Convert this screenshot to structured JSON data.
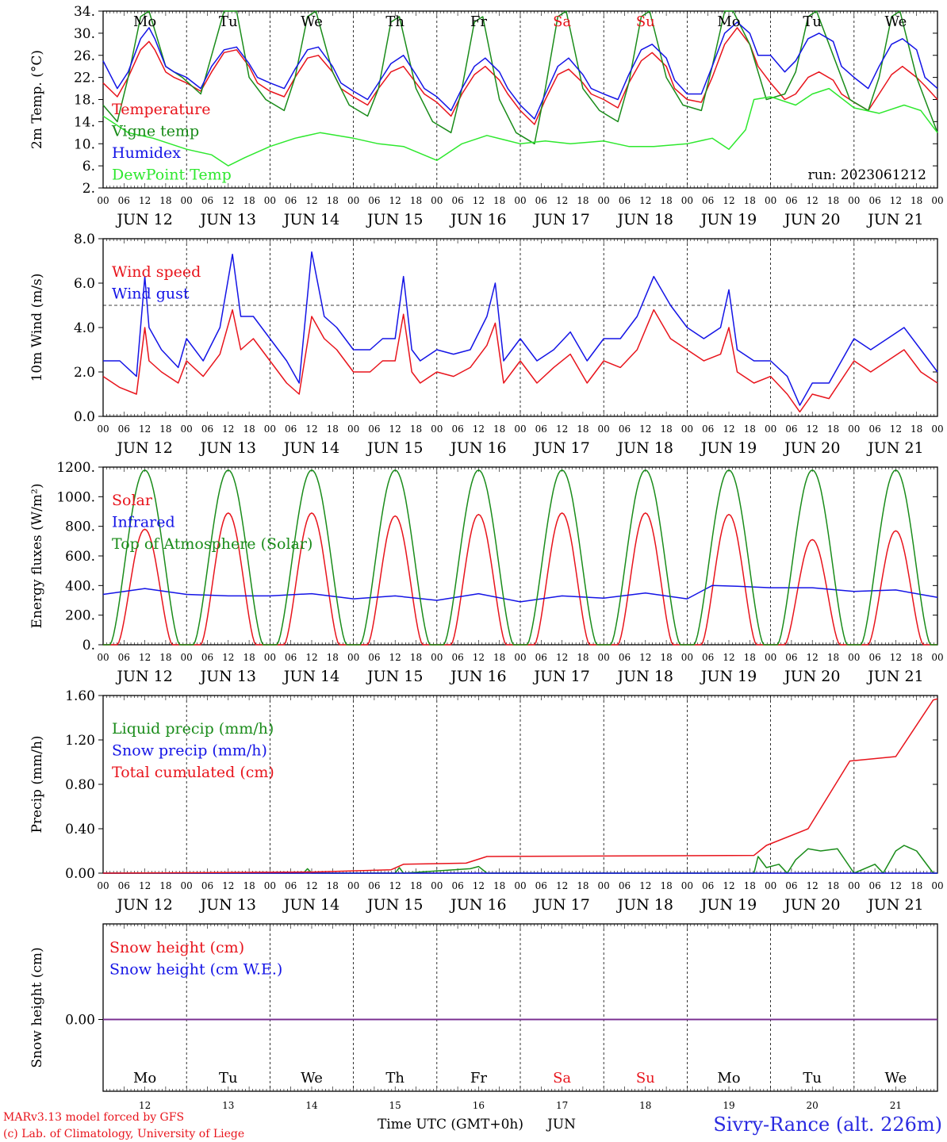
{
  "meta": {
    "run": "run: 2023061212",
    "credits": [
      "MARv3.13 model forced by GFS",
      "(c) Lab. of Climatology, University of Liege"
    ],
    "station": "Sivry-Rance (alt. 226m)",
    "xlabel": "Time UTC (GMT+0h)",
    "month": "JUN"
  },
  "days": {
    "names": [
      "Mo",
      "Tu",
      "We",
      "Th",
      "Fr",
      "Sa",
      "Su",
      "Mo",
      "Tu",
      "We"
    ],
    "weekend": [
      false,
      false,
      false,
      false,
      false,
      true,
      true,
      false,
      false,
      false
    ],
    "dates": [
      "JUN 12",
      "JUN 13",
      "JUN 14",
      "JUN 15",
      "JUN 16",
      "JUN 17",
      "JUN 18",
      "JUN 19",
      "JUN 20",
      "JUN 21"
    ],
    "numbers": [
      "12",
      "13",
      "14",
      "15",
      "16",
      "17",
      "18",
      "19",
      "20",
      "21"
    ],
    "hour_ticks": [
      "00",
      "06",
      "12",
      "18"
    ],
    "final_tick": "00"
  },
  "colors": {
    "red": "#e8141c",
    "blue": "#1414e6",
    "green": "#1a8c1a",
    "lightgreen": "#2ee82e",
    "purple": "#7a2a8a",
    "weekend": "#e8141c",
    "axis": "#000000"
  },
  "chart_data": [
    {
      "type": "line",
      "ylabel": "2m Temp. (°C)",
      "ylim": [
        2,
        34
      ],
      "yticks": [
        "34.",
        "30.",
        "26.",
        "22.",
        "18.",
        "14.",
        "10.",
        "6.",
        "2."
      ],
      "x_unit": "days since 2023-06-12 00 UTC",
      "xlim": [
        0,
        10
      ],
      "legend": "top-left",
      "series": [
        {
          "name": "Temperature",
          "color": "red",
          "x": [
            0,
            0.17,
            0.3,
            0.45,
            0.55,
            0.62,
            0.75,
            0.85,
            1.0,
            1.17,
            1.3,
            1.45,
            1.6,
            1.75,
            1.85,
            2.0,
            2.17,
            2.3,
            2.45,
            2.58,
            2.75,
            2.85,
            3.0,
            3.17,
            3.3,
            3.45,
            3.6,
            3.75,
            3.85,
            4.0,
            4.17,
            4.3,
            4.45,
            4.58,
            4.75,
            4.85,
            5.0,
            5.17,
            5.3,
            5.45,
            5.58,
            5.75,
            5.85,
            6.0,
            6.17,
            6.3,
            6.45,
            6.58,
            6.75,
            6.85,
            7.0,
            7.17,
            7.3,
            7.45,
            7.6,
            7.75,
            7.85,
            8.0,
            8.17,
            8.3,
            8.45,
            8.58,
            8.75,
            8.85,
            9.0,
            9.17,
            9.3,
            9.45,
            9.58,
            9.75,
            9.85,
            10.0
          ],
          "y": [
            21,
            18.5,
            22,
            27,
            28.5,
            27,
            23,
            22,
            21,
            19.5,
            23,
            26.5,
            27,
            24,
            21,
            19.5,
            18.5,
            22,
            25.5,
            26,
            23,
            20,
            18.5,
            17,
            20,
            23,
            24,
            21,
            19,
            17.5,
            15,
            19,
            22.5,
            24,
            21.5,
            19,
            16,
            13.5,
            18,
            22.5,
            23.5,
            21,
            19,
            18,
            16.5,
            21,
            25,
            26.5,
            24,
            20,
            18,
            17.5,
            22,
            28,
            31,
            28,
            24,
            21,
            18,
            19,
            22,
            23,
            21.5,
            19,
            17.5,
            16,
            19,
            22.5,
            24,
            22,
            20.5,
            18
          ]
        },
        {
          "name": "Vigne temp",
          "color": "green",
          "x": [
            0,
            0.17,
            0.3,
            0.45,
            0.55,
            0.75,
            0.95,
            1.17,
            1.3,
            1.45,
            1.6,
            1.75,
            1.95,
            2.17,
            2.3,
            2.45,
            2.55,
            2.75,
            2.95,
            3.17,
            3.3,
            3.45,
            3.55,
            3.75,
            3.95,
            4.17,
            4.3,
            4.45,
            4.55,
            4.75,
            4.95,
            5.17,
            5.3,
            5.45,
            5.55,
            5.75,
            5.95,
            6.17,
            6.3,
            6.45,
            6.55,
            6.75,
            6.95,
            7.17,
            7.3,
            7.45,
            7.55,
            7.75,
            7.95,
            8.17,
            8.3,
            8.45,
            8.55,
            8.75,
            8.95,
            9.17,
            9.3,
            9.45,
            9.55,
            9.75,
            9.95,
            10.0
          ],
          "y": [
            17,
            14,
            22,
            33,
            34,
            24,
            22,
            19,
            26,
            34,
            34,
            22,
            18,
            16,
            22,
            33,
            34,
            23,
            17,
            15,
            20,
            32,
            33,
            20,
            14,
            12,
            20,
            32,
            33,
            18,
            12,
            10,
            20,
            33,
            34,
            20,
            16,
            14,
            21,
            33,
            34,
            22,
            17,
            16,
            24,
            34,
            34,
            28,
            18,
            19,
            23,
            33,
            34,
            26,
            18,
            16,
            22,
            33,
            34,
            22,
            14,
            12
          ]
        },
        {
          "name": "Humidex",
          "color": "blue",
          "x": [
            0,
            0.17,
            0.3,
            0.45,
            0.55,
            0.62,
            0.75,
            0.85,
            1.0,
            1.17,
            1.3,
            1.45,
            1.6,
            1.75,
            1.85,
            2.0,
            2.17,
            2.3,
            2.45,
            2.58,
            2.75,
            2.85,
            3.0,
            3.17,
            3.3,
            3.45,
            3.6,
            3.75,
            3.85,
            4.0,
            4.17,
            4.3,
            4.45,
            4.58,
            4.75,
            4.85,
            5.0,
            5.17,
            5.3,
            5.45,
            5.58,
            5.75,
            5.85,
            6.0,
            6.17,
            6.3,
            6.45,
            6.58,
            6.75,
            6.85,
            7.0,
            7.17,
            7.3,
            7.45,
            7.6,
            7.75,
            7.85,
            8.0,
            8.17,
            8.3,
            8.45,
            8.58,
            8.75,
            8.85,
            9.0,
            9.17,
            9.3,
            9.45,
            9.58,
            9.75,
            9.85,
            10.0
          ],
          "y": [
            25,
            20,
            23,
            29,
            31,
            29,
            24,
            23,
            22,
            20,
            24,
            27,
            27.5,
            24.5,
            22,
            21,
            20,
            23.5,
            27,
            27.5,
            24,
            21,
            19.5,
            18,
            21,
            24.5,
            26,
            22.5,
            20,
            18.5,
            16,
            20,
            24,
            25.5,
            23,
            20,
            17,
            14.5,
            19,
            24,
            25.5,
            22.5,
            20,
            19,
            18,
            22.5,
            27,
            28,
            25.5,
            21.5,
            19,
            19,
            24,
            30,
            32,
            30,
            26,
            26,
            23,
            25,
            29,
            30,
            28.5,
            24,
            22,
            20,
            24,
            28,
            29,
            27,
            22,
            20
          ]
        },
        {
          "name": "DewPoint Temp",
          "color": "lightgreen",
          "x": [
            0,
            0.3,
            0.6,
            1.0,
            1.3,
            1.5,
            1.7,
            2.0,
            2.3,
            2.6,
            3.0,
            3.3,
            3.6,
            4.0,
            4.3,
            4.6,
            5.0,
            5.3,
            5.6,
            6.0,
            6.3,
            6.6,
            7.0,
            7.3,
            7.5,
            7.7,
            7.8,
            8.0,
            8.3,
            8.5,
            8.7,
            9.0,
            9.3,
            9.6,
            9.8,
            10.0
          ],
          "y": [
            15,
            12,
            11,
            9,
            8,
            6,
            7.5,
            9.5,
            11,
            12,
            11,
            10,
            9.5,
            7,
            10,
            11.5,
            10,
            10.5,
            10,
            10.5,
            9.5,
            9.5,
            10,
            11,
            9,
            12.5,
            18,
            18.5,
            17,
            19,
            20,
            16.5,
            15.5,
            17,
            16,
            12
          ]
        }
      ]
    },
    {
      "type": "line",
      "ylabel": "10m Wind (m/s)",
      "ylim": [
        0,
        8
      ],
      "yticks": [
        "8.0",
        "6.0",
        "4.0",
        "2.0",
        "0.0"
      ],
      "xlim": [
        0,
        10
      ],
      "legend": "top-left",
      "reference_line": 5,
      "series": [
        {
          "name": "Wind speed",
          "color": "red",
          "x": [
            0,
            0.2,
            0.4,
            0.5,
            0.55,
            0.7,
            0.9,
            1.0,
            1.2,
            1.4,
            1.55,
            1.65,
            1.8,
            2.0,
            2.2,
            2.35,
            2.5,
            2.65,
            2.8,
            3.0,
            3.2,
            3.35,
            3.5,
            3.6,
            3.7,
            3.8,
            4.0,
            4.2,
            4.4,
            4.6,
            4.7,
            4.8,
            5.0,
            5.2,
            5.4,
            5.6,
            5.8,
            6.0,
            6.2,
            6.4,
            6.6,
            6.8,
            7.0,
            7.2,
            7.4,
            7.5,
            7.6,
            7.8,
            8.0,
            8.2,
            8.35,
            8.5,
            8.7,
            9.0,
            9.2,
            9.4,
            9.6,
            9.8,
            10.0
          ],
          "y": [
            1.8,
            1.3,
            1.0,
            4.0,
            2.5,
            2.0,
            1.5,
            2.5,
            1.8,
            2.8,
            4.8,
            3.0,
            3.5,
            2.5,
            1.5,
            1.0,
            4.5,
            3.5,
            3.0,
            2.0,
            2.0,
            2.5,
            2.5,
            4.6,
            2.0,
            1.5,
            2.0,
            1.8,
            2.2,
            3.2,
            4.2,
            1.5,
            2.5,
            1.5,
            2.2,
            2.8,
            1.5,
            2.5,
            2.2,
            3.0,
            4.8,
            3.5,
            3.0,
            2.5,
            2.8,
            4.0,
            2.0,
            1.5,
            1.8,
            1.0,
            0.2,
            1.0,
            0.8,
            2.5,
            2.0,
            2.5,
            3.0,
            2.0,
            1.5
          ]
        },
        {
          "name": "Wind gust",
          "color": "blue",
          "x": [
            0,
            0.2,
            0.4,
            0.5,
            0.55,
            0.7,
            0.9,
            1.0,
            1.2,
            1.4,
            1.55,
            1.65,
            1.8,
            2.0,
            2.2,
            2.35,
            2.5,
            2.65,
            2.8,
            3.0,
            3.2,
            3.35,
            3.5,
            3.6,
            3.7,
            3.8,
            4.0,
            4.2,
            4.4,
            4.6,
            4.7,
            4.8,
            5.0,
            5.2,
            5.4,
            5.6,
            5.8,
            6.0,
            6.2,
            6.4,
            6.6,
            6.8,
            7.0,
            7.2,
            7.4,
            7.5,
            7.6,
            7.8,
            8.0,
            8.2,
            8.35,
            8.5,
            8.7,
            9.0,
            9.2,
            9.4,
            9.6,
            9.8,
            10.0
          ],
          "y": [
            2.5,
            2.5,
            1.8,
            6.3,
            4.0,
            3.0,
            2.2,
            3.5,
            2.5,
            4.0,
            7.3,
            4.5,
            4.5,
            3.5,
            2.5,
            1.5,
            7.4,
            4.5,
            4.0,
            3.0,
            3.0,
            3.5,
            3.5,
            6.3,
            3.0,
            2.5,
            3.0,
            2.8,
            3.0,
            4.5,
            6.0,
            2.5,
            3.5,
            2.5,
            3.0,
            3.8,
            2.5,
            3.5,
            3.5,
            4.5,
            6.3,
            5.0,
            4.0,
            3.5,
            4.0,
            5.7,
            3.0,
            2.5,
            2.5,
            1.8,
            0.5,
            1.5,
            1.5,
            3.5,
            3.0,
            3.5,
            4.0,
            3.0,
            2.0
          ]
        }
      ]
    },
    {
      "type": "line",
      "ylabel": "Energy fluxes (W/m²)",
      "ylim": [
        0,
        1200
      ],
      "yticks": [
        "1200.",
        "1000.",
        "800.",
        "600.",
        "400.",
        "200.",
        "0."
      ],
      "xlim": [
        0,
        10
      ],
      "legend": "top-left",
      "series": [
        {
          "name": "Solar",
          "color": "red",
          "diurnal_peak": [
            780,
            890,
            890,
            870,
            880,
            890,
            890,
            880,
            710,
            770
          ],
          "diurnal_span": [
            0.17,
            0.83
          ]
        },
        {
          "name": "Infrared",
          "color": "blue",
          "x": [
            0,
            0.5,
            1.0,
            1.5,
            2.0,
            2.5,
            3.0,
            3.5,
            4.0,
            4.5,
            5.0,
            5.5,
            6.0,
            6.5,
            7.0,
            7.3,
            7.6,
            8.0,
            8.5,
            9.0,
            9.5,
            10.0
          ],
          "y": [
            340,
            380,
            340,
            330,
            330,
            345,
            310,
            330,
            300,
            345,
            290,
            330,
            315,
            350,
            310,
            400,
            395,
            385,
            385,
            360,
            370,
            320
          ]
        },
        {
          "name": "Top of Atmosphere (Solar)",
          "color": "green",
          "diurnal_peak": [
            1180,
            1180,
            1180,
            1180,
            1180,
            1180,
            1180,
            1180,
            1180,
            1180
          ],
          "diurnal_span": [
            0.08,
            0.92
          ]
        }
      ]
    },
    {
      "type": "line",
      "ylabel": "Precip (mm/h)",
      "ylim": [
        0,
        1.6
      ],
      "yticks": [
        "1.60",
        "1.20",
        "0.80",
        "0.40",
        "0.00"
      ],
      "xlim": [
        0,
        10
      ],
      "legend": "top-left",
      "series": [
        {
          "name": "Liquid precip (mm/h)",
          "color": "green",
          "x": [
            0,
            2.4,
            2.45,
            2.5,
            3.5,
            3.55,
            3.6,
            4.4,
            4.5,
            4.6,
            7.8,
            7.85,
            7.95,
            8.1,
            8.2,
            8.3,
            8.45,
            8.6,
            8.8,
            9.0,
            9.25,
            9.35,
            9.5,
            9.6,
            9.75,
            9.95,
            10.0
          ],
          "y": [
            0,
            0,
            0.04,
            0,
            0,
            0.05,
            0,
            0.04,
            0.06,
            0,
            0,
            0.15,
            0.05,
            0.08,
            0,
            0.12,
            0.22,
            0.2,
            0.22,
            0,
            0.08,
            0,
            0.2,
            0.25,
            0.2,
            0,
            0
          ]
        },
        {
          "name": "Snow precip (mm/h)",
          "color": "blue",
          "x": [
            0,
            10
          ],
          "y": [
            0,
            0
          ]
        },
        {
          "name": "Total cumulated (cm)",
          "color": "red",
          "x": [
            0,
            2.5,
            3.45,
            3.6,
            4.35,
            4.6,
            7.8,
            7.95,
            8.45,
            8.95,
            9.5,
            9.95,
            10.0
          ],
          "y": [
            0,
            0.01,
            0.03,
            0.08,
            0.09,
            0.15,
            0.16,
            0.25,
            0.4,
            1.01,
            1.05,
            1.56,
            1.57
          ]
        }
      ]
    },
    {
      "type": "line",
      "ylabel": "Snow height (cm)",
      "yticks": [
        "0.00"
      ],
      "xlim": [
        0,
        10
      ],
      "legend": "top-left",
      "series": [
        {
          "name": "Snow height (cm)",
          "color": "red",
          "x": [
            0,
            10
          ],
          "y": [
            0,
            0
          ]
        },
        {
          "name": "Snow height (cm W.E.)",
          "color": "blue",
          "x": [
            0,
            10
          ],
          "y": [
            0,
            0
          ]
        }
      ]
    }
  ]
}
